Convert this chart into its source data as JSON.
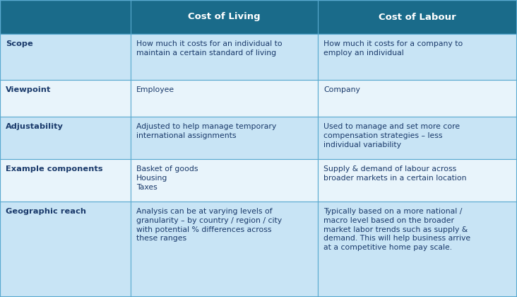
{
  "header_bg": "#1a6b8a",
  "header_text_color": "#ffffff",
  "row_bg_light": "#c8e4f5",
  "row_bg_white": "#e8f4fb",
  "cell_text_color": "#1a3a6b",
  "label_text_color": "#1a3a6b",
  "border_color": "#5aaad0",
  "col1_label": "Cost of Living",
  "col2_label": "Cost of Labour",
  "rows": [
    {
      "label": "Scope",
      "col1": "How much it costs for an individual to\nmaintain a certain standard of living",
      "col2": "How much it costs for a company to\nemploy an individual",
      "bg": "light"
    },
    {
      "label": "Viewpoint",
      "col1": "Employee",
      "col2": "Company",
      "bg": "white"
    },
    {
      "label": "Adjustability",
      "col1": "Adjusted to help manage temporary\ninternational assignments",
      "col2": "Used to manage and set more core\ncompensation strategies – less\nindividual variability",
      "bg": "light"
    },
    {
      "label": "Example components",
      "col1": "Basket of goods\nHousing\nTaxes",
      "col2": "Supply & demand of labour across\nbroader markets in a certain location",
      "bg": "white"
    },
    {
      "label": "Geographic reach",
      "col1": "Analysis can be at varying levels of\ngranularity – by country / region / city\nwith potential % differences across\nthese ranges",
      "col2": "Typically based on a more national /\nmacro level based on the broader\nmarket labor trends such as supply &\ndemand. This will help business arrive\nat a competitive home pay scale.",
      "bg": "light"
    }
  ],
  "figsize": [
    7.32,
    4.2
  ],
  "dpi": 100
}
